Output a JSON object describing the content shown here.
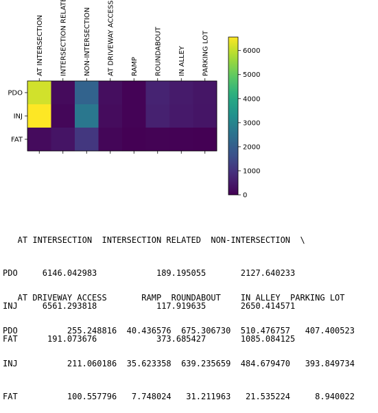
{
  "chart_data": {
    "type": "heatmap",
    "rows": [
      "PDO",
      "INJ",
      "FAT"
    ],
    "columns": [
      "AT INTERSECTION",
      "INTERSECTION RELATED",
      "NON-INTERSECTION",
      "AT DRIVEWAY ACCESS",
      "RAMP",
      "ROUNDABOUT",
      "IN ALLEY",
      "PARKING LOT"
    ],
    "values": [
      [
        6146.042983,
        189.195055,
        2127.640233,
        255.248816,
        40.436576,
        675.30673,
        510.476757,
        407.400523
      ],
      [
        6561.293818,
        117.919635,
        2650.414571,
        211.060186,
        35.623358,
        639.235659,
        484.67947,
        393.849734
      ],
      [
        191.073676,
        373.685427,
        1085.084125,
        100.557796,
        7.748024,
        31.211963,
        21.535224,
        8.940022
      ]
    ],
    "colormap": "viridis",
    "colorbar": {
      "vmin": 0,
      "vmax": 6561.293818,
      "ticks": [
        0,
        1000,
        2000,
        3000,
        4000,
        5000,
        6000
      ],
      "tick_labels": [
        "0",
        "1000",
        "2000",
        "3000",
        "4000",
        "5000",
        "6000"
      ]
    }
  },
  "table_output": {
    "block1": {
      "header": "   AT INTERSECTION  INTERSECTION RELATED  NON-INTERSECTION  \\",
      "rows": [
        "PDO     6146.042983            189.195055       2127.640233",
        "INJ     6561.293818            117.919635       2650.414571",
        "FAT      191.073676            373.685427       1085.084125"
      ]
    },
    "block2": {
      "header": "   AT DRIVEWAY ACCESS       RAMP  ROUNDABOUT    IN ALLEY  PARKING LOT",
      "rows": [
        "PDO          255.248816  40.436576  675.306730  510.476757   407.400523",
        "INJ          211.060186  35.623358  639.235659  484.679470   393.849734",
        "FAT          100.557796   7.748024   31.211963   21.535224     8.940022"
      ]
    }
  }
}
